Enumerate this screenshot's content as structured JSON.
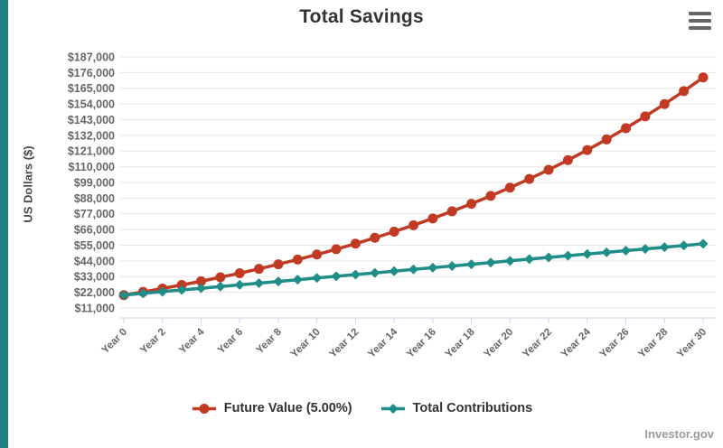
{
  "page": {
    "watermark": "Investor.gov",
    "accent_color": "#1F8182",
    "menu_icon": "hamburger-menu-icon"
  },
  "chart_data": {
    "type": "line",
    "title": "Total Savings",
    "xlabel": "",
    "ylabel": "US Dollars ($)",
    "grid": true,
    "legend_position": "bottom",
    "ylim": [
      4000,
      187000
    ],
    "x_label_step": 2,
    "categories": [
      "Year 0",
      "Year 1",
      "Year 2",
      "Year 3",
      "Year 4",
      "Year 5",
      "Year 6",
      "Year 7",
      "Year 8",
      "Year 9",
      "Year 10",
      "Year 11",
      "Year 12",
      "Year 13",
      "Year 14",
      "Year 15",
      "Year 16",
      "Year 17",
      "Year 18",
      "Year 19",
      "Year 20",
      "Year 21",
      "Year 22",
      "Year 23",
      "Year 24",
      "Year 25",
      "Year 26",
      "Year 27",
      "Year 28",
      "Year 29",
      "Year 30"
    ],
    "y_ticks": [
      11000,
      22000,
      33000,
      44000,
      55000,
      66000,
      77000,
      88000,
      99000,
      110000,
      121000,
      132000,
      143000,
      154000,
      165000,
      176000,
      187000
    ],
    "y_tick_labels": [
      "$11,000",
      "$22,000",
      "$33,000",
      "$44,000",
      "$55,000",
      "$66,000",
      "$77,000",
      "$88,000",
      "$99,000",
      "$110,000",
      "$121,000",
      "$132,000",
      "$143,000",
      "$154,000",
      "$165,000",
      "$176,000",
      "$187,000"
    ],
    "series": [
      {
        "name": "Future Value (5.00%)",
        "color": "#C13A24",
        "marker": "circle",
        "values": [
          20000,
          22251,
          24617,
          27105,
          29719,
          32468,
          35357,
          38393,
          41586,
          44941,
          48468,
          52176,
          56074,
          60171,
          64478,
          69005,
          73763,
          78765,
          84023,
          89550,
          95360,
          101467,
          107886,
          114634,
          121728,
          129184,
          137021,
          145260,
          153920,
          163023,
          172581
        ]
      },
      {
        "name": "Total Contributions",
        "color": "#1F8E88",
        "marker": "diamond",
        "values": [
          20000,
          21200,
          22400,
          23600,
          24800,
          26000,
          27200,
          28400,
          29600,
          30800,
          32000,
          33200,
          34400,
          35600,
          36800,
          38000,
          39200,
          40400,
          41600,
          42800,
          44000,
          45200,
          46400,
          47600,
          48800,
          50000,
          51200,
          52400,
          53600,
          54800,
          56000
        ]
      }
    ],
    "axis_color": "#CCD6EB",
    "gridline_color": "#E7E7E7"
  }
}
